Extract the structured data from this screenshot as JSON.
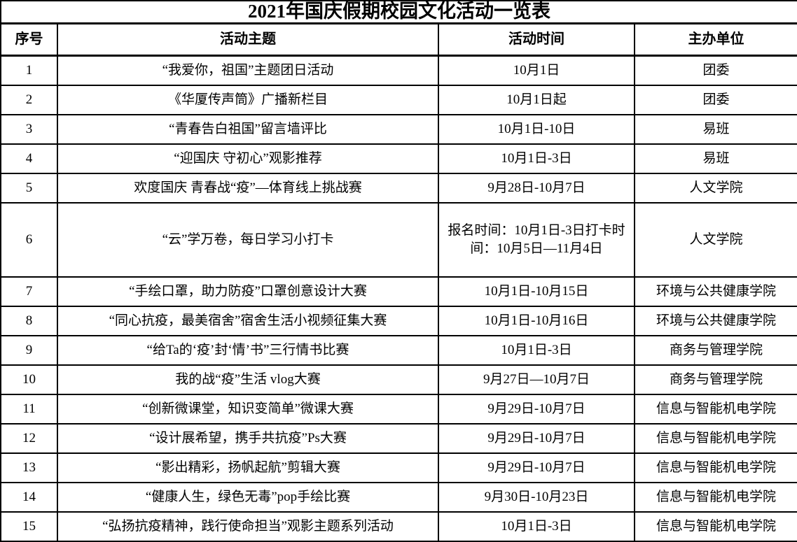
{
  "title": "2021年国庆假期校园文化活动一览表",
  "table": {
    "headers": [
      "序号",
      "活动主题",
      "活动时间",
      "主办单位"
    ],
    "rows": [
      {
        "no": "1",
        "theme": "“我爱你，祖国”主题团日活动",
        "time": "10月1日",
        "organizer": "团委"
      },
      {
        "no": "2",
        "theme": "《华厦传声筒》广播新栏目",
        "time": "10月1日起",
        "organizer": "团委"
      },
      {
        "no": "3",
        "theme": "“青春告白祖国”留言墙评比",
        "time": "10月1日-10日",
        "organizer": "易班"
      },
      {
        "no": "4",
        "theme": "“迎国庆 守初心”观影推荐",
        "time": "10月1日-3日",
        "organizer": "易班"
      },
      {
        "no": "5",
        "theme": "欢度国庆 青春战“疫”—体育线上挑战赛",
        "time": "9月28日-10月7日",
        "organizer": "人文学院"
      },
      {
        "no": "6",
        "theme": "“云”学万卷，每日学习小打卡",
        "time": "报名时间：10月1日-3日打卡时间：10月5日—11月4日",
        "organizer": "人文学院",
        "tall": true
      },
      {
        "no": "7",
        "theme": "“手绘口罩，助力防疫”口罩创意设计大赛",
        "time": "10月1日-10月15日",
        "organizer": "环境与公共健康学院"
      },
      {
        "no": "8",
        "theme": "“同心抗疫，最美宿舍”宿舍生活小视频征集大赛",
        "time": "10月1日-10月16日",
        "organizer": "环境与公共健康学院"
      },
      {
        "no": "9",
        "theme": "“给Ta的‘疫’封‘情’书”三行情书比赛",
        "time": "10月1日-3日",
        "organizer": "商务与管理学院"
      },
      {
        "no": "10",
        "theme": "我的战“疫”生活 vlog大赛",
        "time": "9月27日—10月7日",
        "organizer": "商务与管理学院"
      },
      {
        "no": "11",
        "theme": "“创新微课堂，知识变简单”微课大赛",
        "time": "9月29日-10月7日",
        "organizer": "信息与智能机电学院"
      },
      {
        "no": "12",
        "theme": "“设计展希望，携手共抗疫”Ps大赛",
        "time": "9月29日-10月7日",
        "organizer": "信息与智能机电学院"
      },
      {
        "no": "13",
        "theme": "“影出精彩，扬帆起航”剪辑大赛",
        "time": "9月29日-10月7日",
        "organizer": "信息与智能机电学院"
      },
      {
        "no": "14",
        "theme": "“健康人生，绿色无毒”pop手绘比赛",
        "time": "9月30日-10月23日",
        "organizer": "信息与智能机电学院"
      },
      {
        "no": "15",
        "theme": "“弘扬抗疫精神，践行使命担当”观影主题系列活动",
        "time": "10月1日-3日",
        "organizer": "信息与智能机电学院"
      }
    ]
  }
}
